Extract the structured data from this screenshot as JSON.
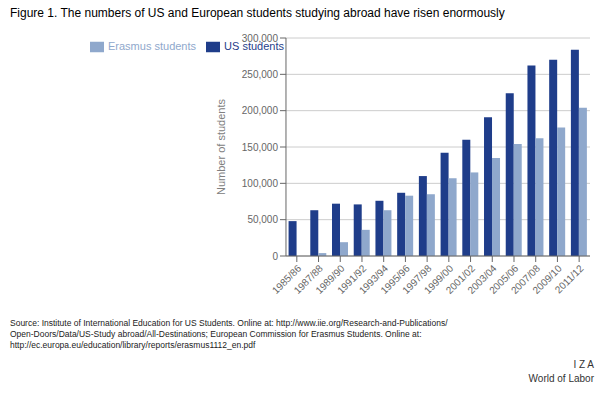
{
  "chart_data": {
    "type": "bar",
    "title": "Figure 1. The numbers of US and European students studying abroad have risen enormously",
    "ylabel": "Number of students",
    "categories": [
      "1985/86",
      "1987/88",
      "1989/90",
      "1991/92",
      "1993/94",
      "1995/96",
      "1997/98",
      "1999/00",
      "2001/02",
      "2003/04",
      "2005/06",
      "2007/08",
      "2009/10",
      "2011/12"
    ],
    "series": [
      {
        "name": "US students",
        "color": "#1F3D8A",
        "values": [
          48000,
          63000,
          72000,
          71000,
          76000,
          87000,
          110000,
          142000,
          160000,
          191000,
          224000,
          262000,
          270000,
          284000
        ]
      },
      {
        "name": "Erasmus students",
        "color": "#8FA8CC",
        "values": [
          0,
          4000,
          19000,
          36000,
          63000,
          83000,
          85000,
          107000,
          115000,
          135000,
          154000,
          162000,
          177000,
          204000
        ]
      }
    ],
    "ylim": [
      0,
      300000
    ],
    "yticks": [
      0,
      {
        "value": 50000,
        "label": "50,000"
      },
      {
        "value": 100000,
        "label": "100,000"
      },
      {
        "value": 150000,
        "label": "150,000"
      },
      {
        "value": 200000,
        "label": "200,000"
      },
      {
        "value": 250000,
        "label": "250,000"
      },
      {
        "value": 300000,
        "label": "300,000"
      }
    ],
    "grid": true,
    "legend": "upper left",
    "annotations": [
      "Source: Institute of International Education for US Students. Online at: http://www.iie.org/Research-and-Publications/\nOpen-Doors/Data/US-Study abroad/All-Destinations; European Commission for Erasmus Students. Online at:\nhttp://ec.europa.eu/education/library/reports/erasmus1112_en.pdf",
      "I Z A",
      "World of Labor"
    ]
  }
}
